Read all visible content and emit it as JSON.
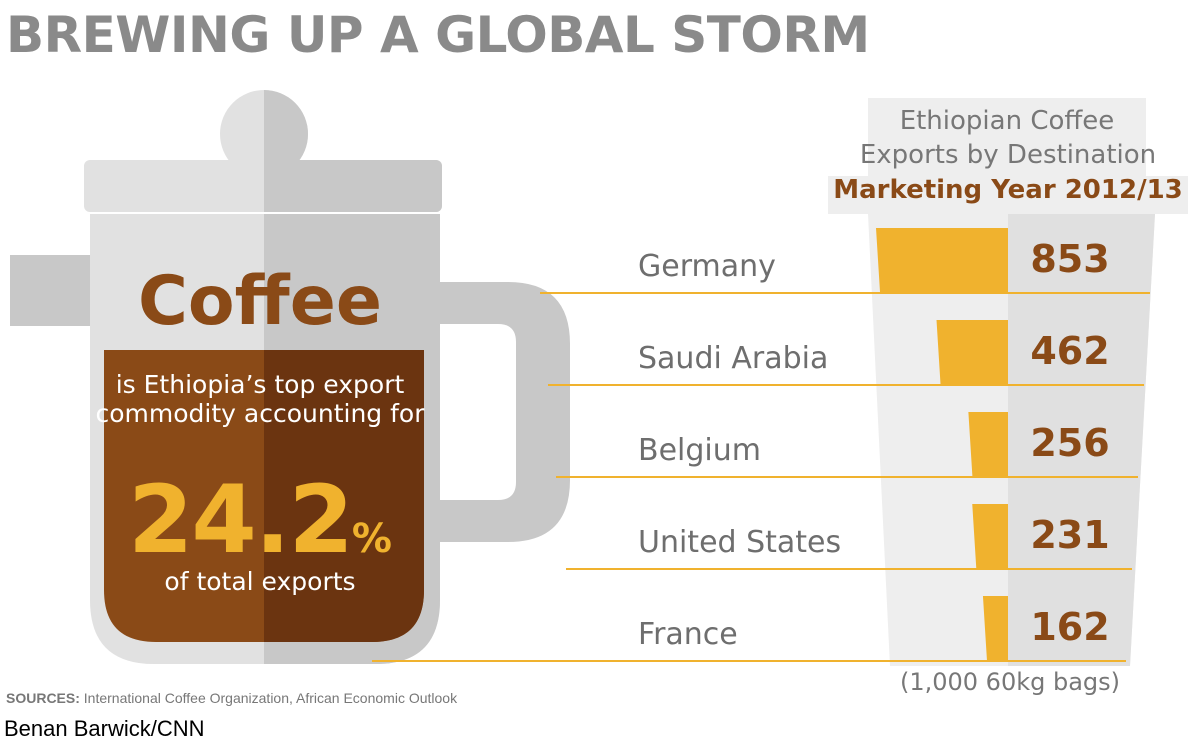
{
  "headline": "BREWING UP A GLOBAL STORM",
  "pot": {
    "title": "Coffee",
    "description": "is Ethiopia’s top export commodity accounting for",
    "percent_value": "24.2",
    "percent_sign": "%",
    "subtext": "of total exports"
  },
  "chart_data": {
    "type": "bar",
    "title_lines": [
      "Ethiopian Coffee",
      "Exports by Destination"
    ],
    "subtitle": "Marketing Year 2012/13",
    "categories": [
      "Germany",
      "Saudi Arabia",
      "Belgium",
      "United States",
      "France"
    ],
    "values": [
      853,
      462,
      256,
      231,
      162
    ],
    "unit_note": "(1,000 60kg bags)",
    "orientation": "horizontal",
    "bar_color": "#f0b22e",
    "value_color": "#8a4a17"
  },
  "footer": {
    "sources_label": "SOURCES:",
    "sources_text": "International Coffee Organization, African Economic Outlook",
    "credit": "Benan Barwick/CNN"
  },
  "colors": {
    "headline": "#8a8a8a",
    "pot_light": "#e1e1e1",
    "pot_dark": "#c8c8c8",
    "coffee_light": "#8a4a17",
    "coffee_dark": "#6b3410",
    "accent": "#f0b22e"
  }
}
